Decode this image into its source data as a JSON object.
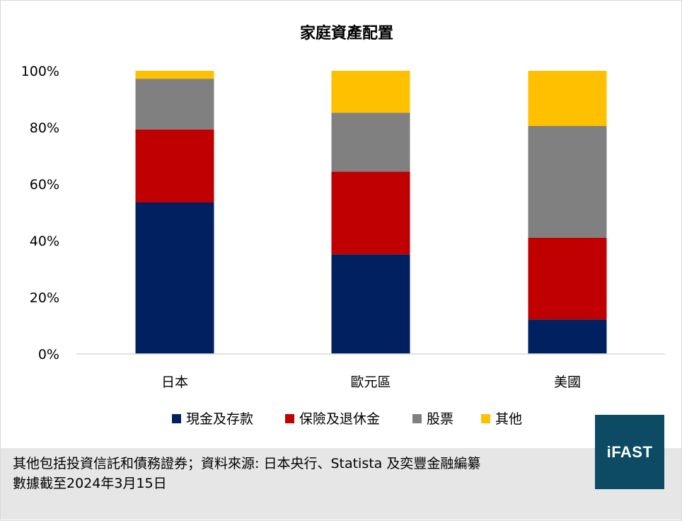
{
  "chart_data": {
    "type": "bar",
    "stacked": true,
    "title": "家庭資產配置",
    "categories": [
      "日本",
      "歐元區",
      "美國"
    ],
    "series": [
      {
        "name": "現金及存款",
        "color": "#002060",
        "values": [
          53.5,
          35.2,
          12.2
        ]
      },
      {
        "name": "保險及退休金",
        "color": "#c00000",
        "values": [
          25.8,
          29.2,
          28.8
        ]
      },
      {
        "name": "股票",
        "color": "#808080",
        "values": [
          17.9,
          20.8,
          39.5
        ]
      },
      {
        "name": "其他",
        "color": "#ffc000",
        "values": [
          2.8,
          14.8,
          19.5
        ]
      }
    ],
    "ylim": [
      0,
      100
    ],
    "yticks": [
      "0%",
      "20%",
      "40%",
      "60%",
      "80%",
      "100%"
    ],
    "grid": false,
    "legend_position": "bottom"
  },
  "footer": {
    "note_line1": "其他包括投資信託和債務證券；資料來源: 日本央行、Statista 及奕豐金融編纂",
    "note_line2": "數據截至2024年3月15日"
  },
  "logo": {
    "text": "iFAST",
    "color": "#0d4a64"
  }
}
